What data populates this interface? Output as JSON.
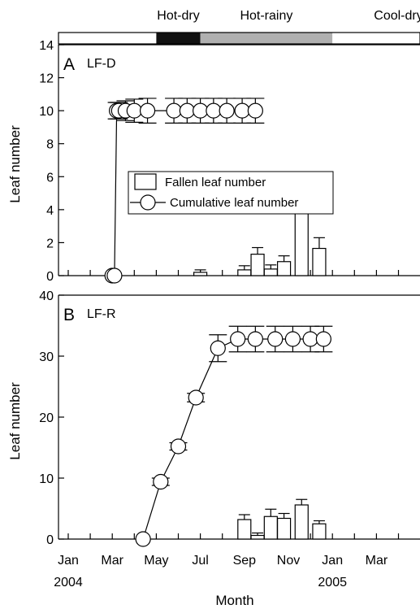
{
  "seasons": {
    "labels": [
      "Hot-dry",
      "Hot-rainy",
      "Cool-dry"
    ],
    "bar": [
      {
        "from": 0,
        "to": 2,
        "fill": "#ffffff"
      },
      {
        "from": 2,
        "to": 3,
        "fill": "#111111"
      },
      {
        "from": 3,
        "to": 6,
        "fill": "#b0b0b0"
      },
      {
        "from": 6,
        "to": 8,
        "fill": "#ffffff"
      },
      {
        "from": 8,
        "to": 9,
        "fill": "#111111"
      }
    ],
    "label_centers": [
      2.5,
      4.5,
      7.5
    ]
  },
  "x_axis": {
    "title": "Month",
    "tick_labels": [
      "Jan",
      "Mar",
      "May",
      "Jul",
      "Sep",
      "Nov",
      "Jan",
      "Mar"
    ],
    "tick_positions": [
      0,
      1,
      2,
      3,
      4,
      5,
      6,
      7
    ],
    "year_labels": [
      {
        "text": "2004",
        "at": 0
      },
      {
        "text": "2005",
        "at": 6
      }
    ],
    "range": [
      0,
      8.4
    ],
    "minor_ticks": 17
  },
  "legend": {
    "bar_label": "Fallen leaf number",
    "line_label": "Cumulative leaf number"
  },
  "chart_data": [
    {
      "type": "bar",
      "panel": "A",
      "name": "LF-D",
      "ylabel": "Leaf number",
      "ylim": [
        0,
        14
      ],
      "yticks": [
        0,
        2,
        4,
        6,
        8,
        10,
        12,
        14
      ],
      "bars": {
        "x": [
          3.0,
          4.0,
          4.3,
          4.6,
          4.9,
          5.3,
          5.7
        ],
        "values": [
          0.2,
          0.35,
          1.3,
          0.4,
          0.85,
          5.1,
          1.65
        ],
        "errors": [
          0.15,
          0.25,
          0.4,
          0.25,
          0.35,
          0.7,
          0.65
        ]
      },
      "cumulative": {
        "x": [
          1.0,
          1.05,
          1.1,
          1.15,
          1.3,
          1.5,
          1.8,
          2.4,
          2.7,
          3.0,
          3.3,
          3.6,
          3.95,
          4.25
        ],
        "values": [
          0,
          0,
          10,
          10,
          10,
          10,
          10,
          10,
          10,
          10,
          10,
          10,
          10,
          10
        ],
        "errors": [
          0,
          0,
          0.5,
          0.5,
          0.6,
          0.7,
          0.75,
          0.75,
          0.75,
          0.75,
          0.75,
          0.75,
          0.75,
          0.75
        ]
      }
    },
    {
      "type": "bar",
      "panel": "B",
      "name": "LF-R",
      "ylabel": "Leaf number",
      "ylim": [
        0,
        40
      ],
      "yticks": [
        0,
        10,
        20,
        30,
        40
      ],
      "bars": {
        "x": [
          4.0,
          4.3,
          4.6,
          4.9,
          5.3,
          5.7
        ],
        "values": [
          3.2,
          0.6,
          3.7,
          3.4,
          5.6,
          2.5
        ],
        "errors": [
          0.8,
          0.4,
          1.2,
          0.8,
          0.9,
          0.5
        ]
      },
      "cumulative": {
        "x": [
          1.7,
          2.1,
          2.5,
          2.9,
          3.4,
          3.85,
          4.25,
          4.7,
          5.1,
          5.5,
          5.8
        ],
        "values": [
          0,
          9.4,
          15.2,
          23.2,
          31.3,
          32.8,
          32.8,
          32.8,
          32.8,
          32.8,
          32.8
        ],
        "errors": [
          0,
          0.6,
          0.6,
          0.7,
          2.2,
          2.1,
          2.1,
          2.1,
          2.1,
          2.1,
          2.1
        ]
      }
    }
  ]
}
